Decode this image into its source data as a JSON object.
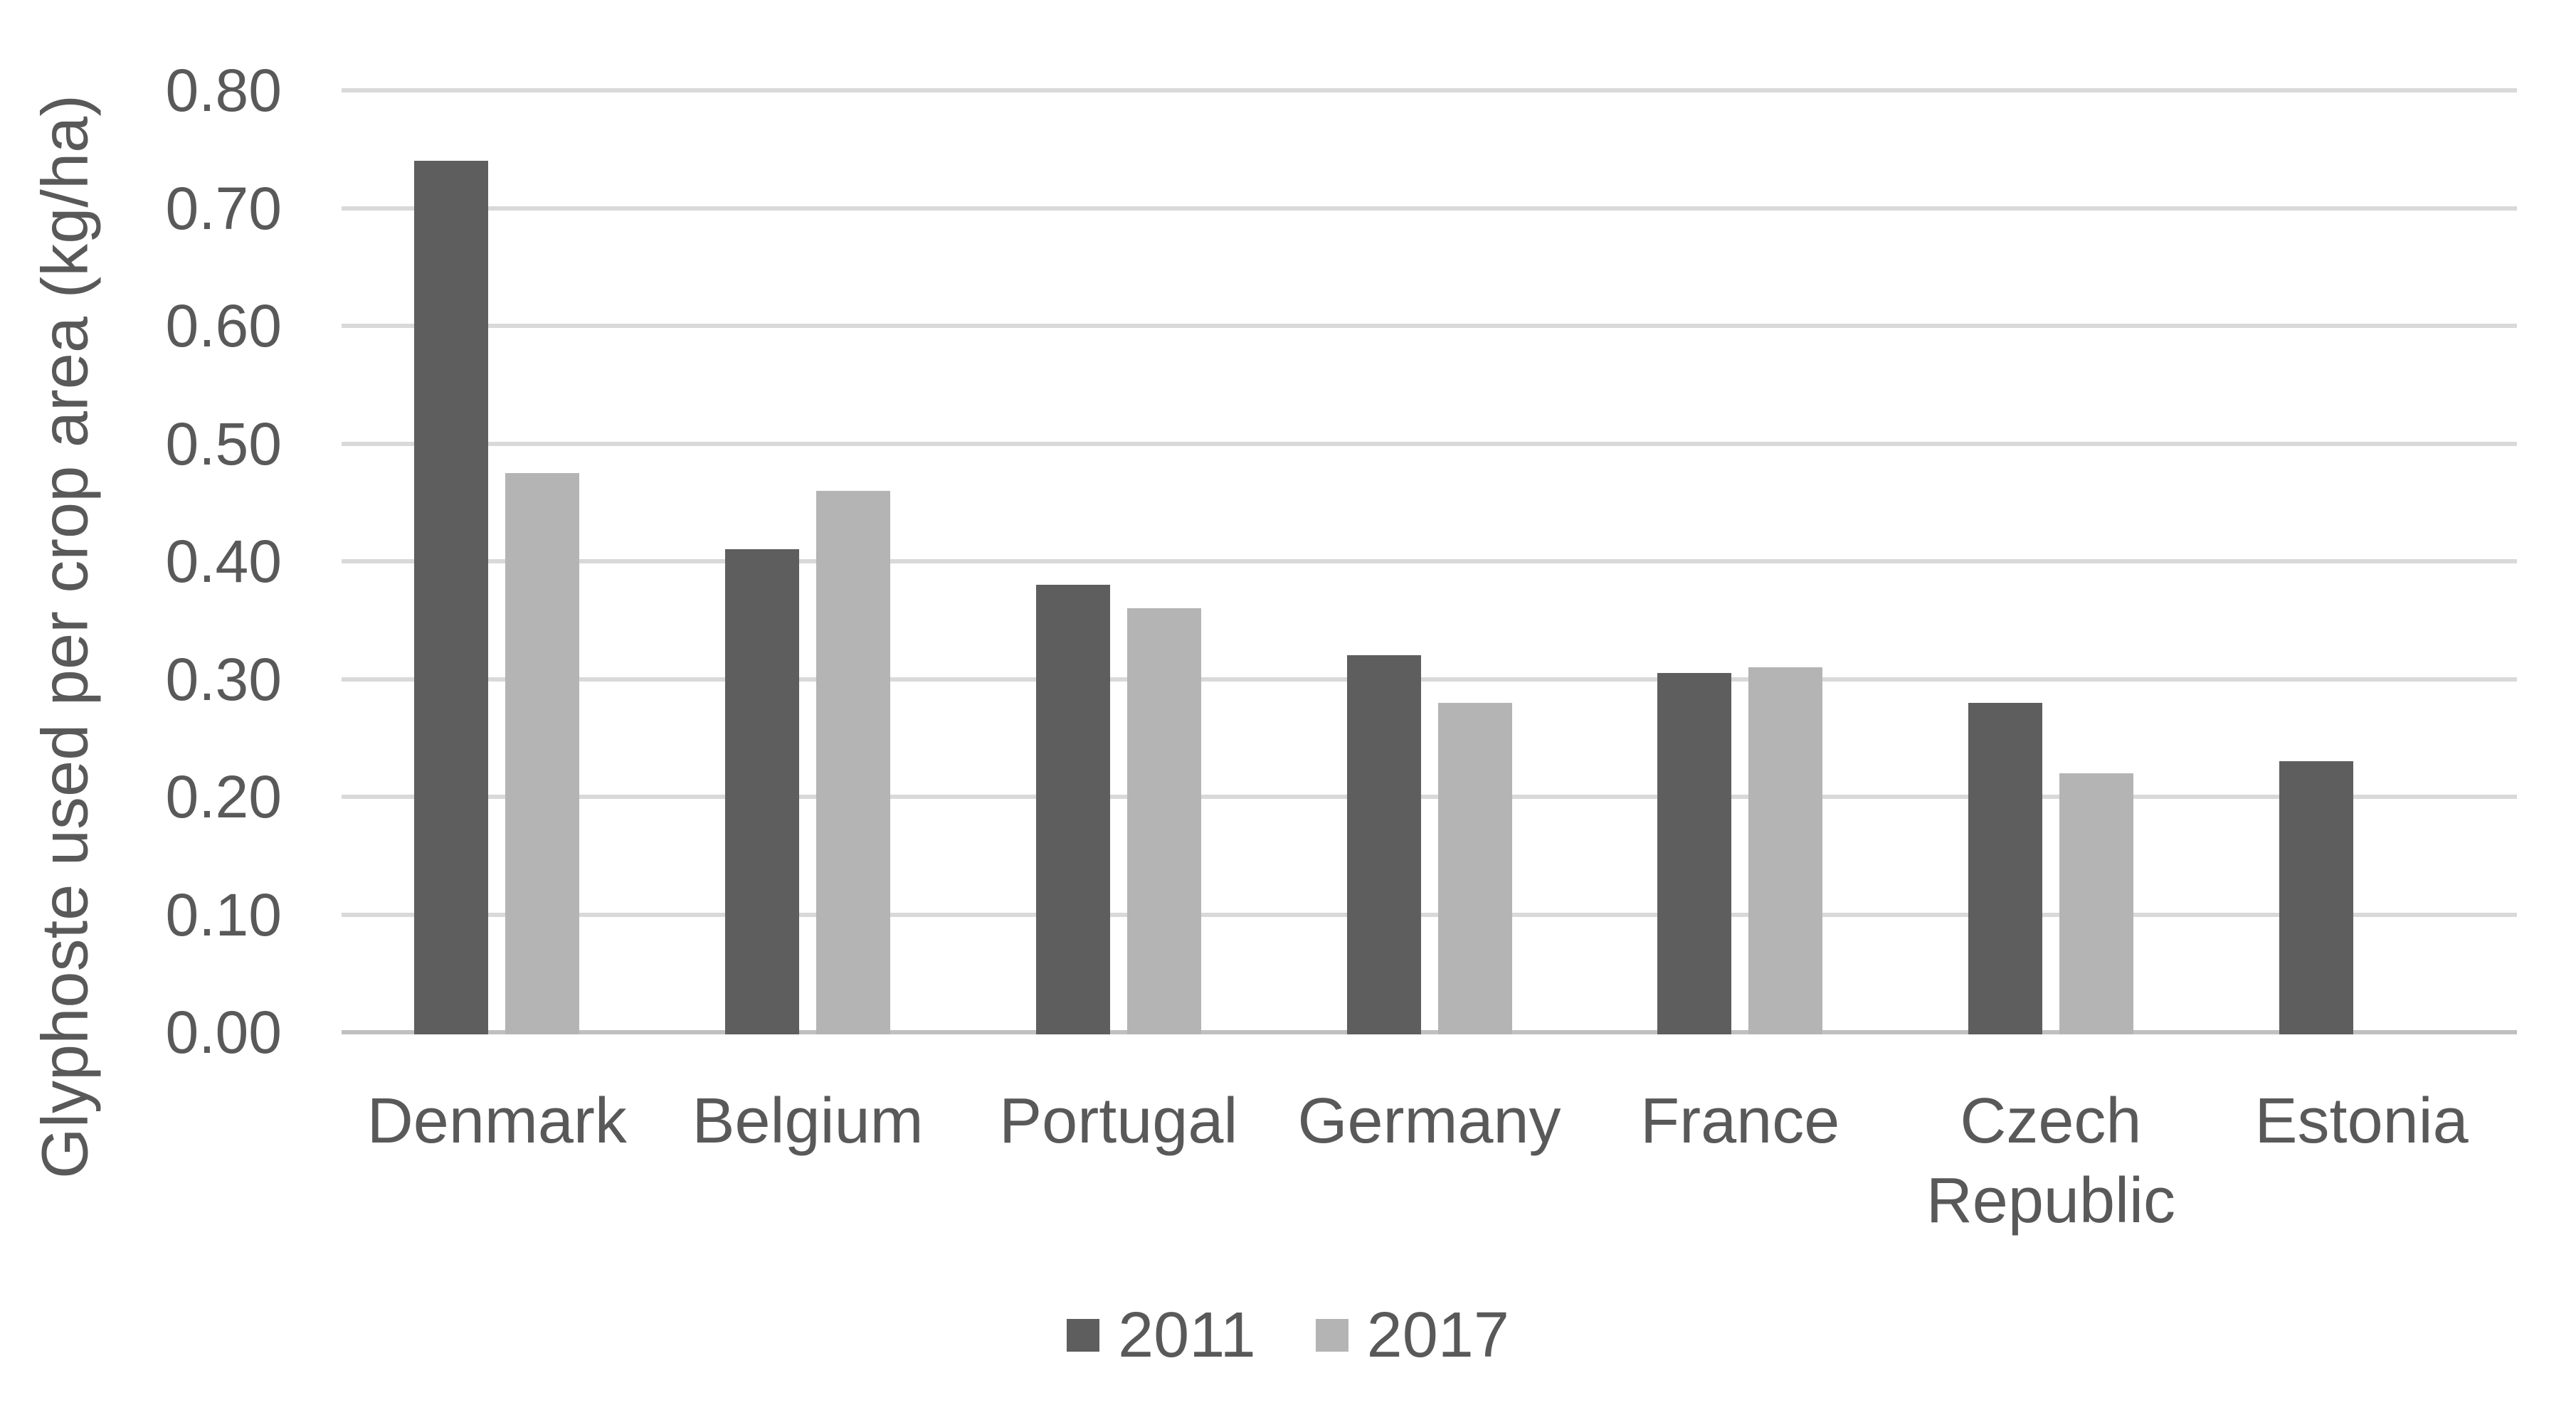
{
  "chart_data": {
    "type": "bar",
    "title": "",
    "xlabel": "",
    "ylabel": "Glyphoste used per crop area (kg/ha)",
    "categories": [
      "Denmark",
      "Belgium",
      "Portugal",
      "Germany",
      "France",
      "Czech Republic",
      "Estonia"
    ],
    "series": [
      {
        "name": "2011",
        "color": "#5e5e5e",
        "values": [
          0.74,
          0.41,
          0.38,
          0.32,
          0.305,
          0.28,
          0.23
        ]
      },
      {
        "name": "2017",
        "color": "#b4b4b4",
        "values": [
          0.475,
          0.46,
          0.36,
          0.28,
          0.31,
          0.22,
          0
        ]
      }
    ],
    "ylim": [
      0,
      0.8
    ],
    "ytick_step": 0.1,
    "ytick_labels": [
      "0.00",
      "0.10",
      "0.20",
      "0.30",
      "0.40",
      "0.50",
      "0.60",
      "0.70",
      "0.80"
    ],
    "grid": true,
    "legend_position": "bottom",
    "colors": {
      "gridline": "#d9d9d9",
      "axis_line": "#c0c0c0",
      "text": "#595959",
      "background": "#ffffff"
    }
  }
}
